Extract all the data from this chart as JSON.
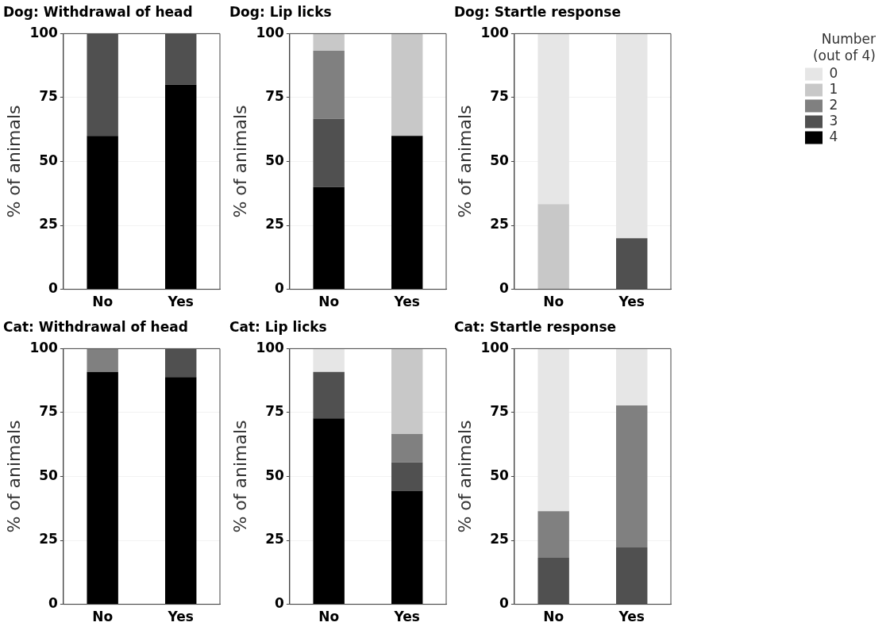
{
  "chart_data": [
    {
      "type": "bar",
      "stacked": true,
      "title": "Dog: Withdrawal of head",
      "ylabel": "% of animals",
      "categories": [
        "No",
        "Yes"
      ],
      "ylim": [
        0,
        100
      ],
      "yticks": [
        0,
        25,
        50,
        75,
        100
      ],
      "grid": "y",
      "series": [
        {
          "color": "#000000",
          "values": [
            60,
            80
          ]
        },
        {
          "color": "#505050",
          "values": [
            40,
            20
          ]
        },
        {
          "color": "#808080",
          "values": [
            0,
            0
          ]
        },
        {
          "color": "#c8c8c8",
          "values": [
            0,
            0
          ]
        },
        {
          "color": "#e6e6e6",
          "values": [
            0,
            0
          ]
        }
      ]
    },
    {
      "type": "bar",
      "stacked": true,
      "title": "Dog: Lip licks",
      "ylabel": "% of animals",
      "categories": [
        "No",
        "Yes"
      ],
      "ylim": [
        0,
        100
      ],
      "yticks": [
        0,
        25,
        50,
        75,
        100
      ],
      "grid": "y",
      "series": [
        {
          "color": "#000000",
          "values": [
            40,
            60
          ]
        },
        {
          "color": "#505050",
          "values": [
            26.7,
            0
          ]
        },
        {
          "color": "#808080",
          "values": [
            26.6,
            0
          ]
        },
        {
          "color": "#c8c8c8",
          "values": [
            6.7,
            40
          ]
        },
        {
          "color": "#e6e6e6",
          "values": [
            0,
            0
          ]
        }
      ]
    },
    {
      "type": "bar",
      "stacked": true,
      "title": "Dog: Startle response",
      "ylabel": "% of animals",
      "legend_title": "Number\n(out of 4)",
      "categories": [
        "No",
        "Yes"
      ],
      "ylim": [
        0,
        100
      ],
      "yticks": [
        0,
        25,
        50,
        75,
        100
      ],
      "grid": "y",
      "legend": "right",
      "series": [
        {
          "name": "4",
          "color": "#000000",
          "values": [
            0,
            0
          ]
        },
        {
          "name": "3",
          "color": "#505050",
          "values": [
            0,
            20
          ]
        },
        {
          "name": "2",
          "color": "#808080",
          "values": [
            0,
            0
          ]
        },
        {
          "name": "1",
          "color": "#c8c8c8",
          "values": [
            33.3,
            0
          ]
        },
        {
          "name": "0",
          "color": "#e6e6e6",
          "values": [
            66.7,
            80
          ]
        }
      ]
    },
    {
      "type": "bar",
      "stacked": true,
      "title": "Cat: Withdrawal of head",
      "ylabel": "% of animals",
      "categories": [
        "No",
        "Yes"
      ],
      "ylim": [
        0,
        100
      ],
      "yticks": [
        0,
        25,
        50,
        75,
        100
      ],
      "grid": "y",
      "series": [
        {
          "color": "#000000",
          "values": [
            90.9,
            88.9
          ]
        },
        {
          "color": "#505050",
          "values": [
            0,
            11.1
          ]
        },
        {
          "color": "#808080",
          "values": [
            9.1,
            0
          ]
        },
        {
          "color": "#c8c8c8",
          "values": [
            0,
            0
          ]
        },
        {
          "color": "#e6e6e6",
          "values": [
            0,
            0
          ]
        }
      ]
    },
    {
      "type": "bar",
      "stacked": true,
      "title": "Cat: Lip licks",
      "ylabel": "% of animals",
      "categories": [
        "No",
        "Yes"
      ],
      "ylim": [
        0,
        100
      ],
      "yticks": [
        0,
        25,
        50,
        75,
        100
      ],
      "grid": "y",
      "series": [
        {
          "color": "#000000",
          "values": [
            72.7,
            44.4
          ]
        },
        {
          "color": "#505050",
          "values": [
            18.2,
            11.1
          ]
        },
        {
          "color": "#808080",
          "values": [
            0,
            11.1
          ]
        },
        {
          "color": "#c8c8c8",
          "values": [
            0,
            33.4
          ]
        },
        {
          "color": "#e6e6e6",
          "values": [
            9.1,
            0
          ]
        }
      ]
    },
    {
      "type": "bar",
      "stacked": true,
      "title": "Cat: Startle response",
      "ylabel": "% of animals",
      "categories": [
        "No",
        "Yes"
      ],
      "ylim": [
        0,
        100
      ],
      "yticks": [
        0,
        25,
        50,
        75,
        100
      ],
      "grid": "y",
      "series": [
        {
          "color": "#000000",
          "values": [
            0,
            0
          ]
        },
        {
          "color": "#505050",
          "values": [
            18.2,
            22.2
          ]
        },
        {
          "color": "#808080",
          "values": [
            18.2,
            55.6
          ]
        },
        {
          "color": "#c8c8c8",
          "values": [
            0,
            0
          ]
        },
        {
          "color": "#e6e6e6",
          "values": [
            63.6,
            22.2
          ]
        }
      ]
    }
  ]
}
